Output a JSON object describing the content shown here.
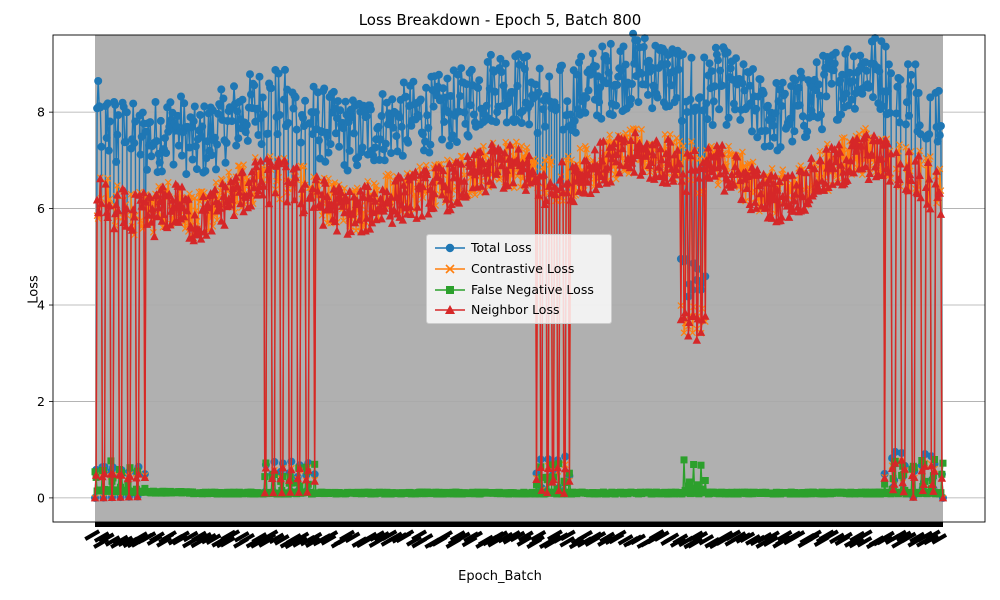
{
  "chart_data": {
    "type": "line",
    "title": "Loss Breakdown - Epoch 5, Batch 800",
    "xlabel": "Epoch_Batch",
    "ylabel": "Loss",
    "ylim": [
      -0.5,
      9.6
    ],
    "yticks": [
      0,
      2,
      4,
      6,
      8
    ],
    "grid": "y-axis horizontal lines",
    "legend_position": "center",
    "plot_background": "#b0b0b0",
    "num_points": 800,
    "x_tick_labels_note": "",
    "series": [
      {
        "name": "Total Loss",
        "color": "#1f77b4",
        "marker": "circle",
        "baseline": [
          7.9,
          7.6,
          7.4,
          7.5,
          7.7,
          7.3,
          7.6,
          7.9,
          8.1,
          8.2,
          8.0,
          7.8,
          7.6,
          7.5,
          7.7,
          7.8,
          7.9,
          8.0,
          8.1,
          8.4,
          8.6,
          8.5,
          8.3,
          8.2,
          8.4,
          8.6,
          8.8,
          8.9,
          8.8,
          8.6,
          8.4,
          8.6,
          8.3,
          8.0,
          7.9,
          8.1,
          8.4,
          8.7,
          8.9,
          8.8,
          8.5,
          8.3,
          8.0
        ]
      },
      {
        "name": "Contrastive Loss",
        "color": "#ff7f0e",
        "marker": "x",
        "baseline": [
          6.3,
          6.1,
          5.9,
          6.0,
          6.2,
          5.8,
          6.1,
          6.4,
          6.6,
          6.7,
          6.5,
          6.3,
          6.1,
          6.0,
          6.2,
          6.3,
          6.4,
          6.5,
          6.6,
          6.8,
          7.0,
          6.9,
          6.7,
          6.6,
          6.8,
          7.0,
          7.1,
          7.2,
          7.1,
          7.0,
          6.8,
          7.0,
          6.7,
          6.4,
          6.3,
          6.5,
          6.8,
          7.0,
          7.2,
          7.1,
          6.9,
          6.7,
          6.4
        ]
      },
      {
        "name": "False Negative Loss",
        "color": "#2ca02c",
        "marker": "square",
        "baseline": [
          0.15,
          0.15,
          0.12,
          0.12,
          0.12,
          0.1,
          0.1,
          0.1,
          0.1,
          0.1,
          0.1,
          0.1,
          0.1,
          0.1,
          0.1,
          0.1,
          0.1,
          0.1,
          0.1,
          0.1,
          0.1,
          0.1,
          0.1,
          0.1,
          0.1,
          0.1,
          0.1,
          0.1,
          0.1,
          0.1,
          0.1,
          0.1,
          0.1,
          0.1,
          0.1,
          0.1,
          0.1,
          0.1,
          0.1,
          0.1,
          0.1,
          0.1,
          0.1
        ]
      },
      {
        "name": "Neighbor Loss",
        "color": "#d62728",
        "marker": "triangle",
        "baseline": [
          6.2,
          6.0,
          5.8,
          5.9,
          6.1,
          5.7,
          6.0,
          6.3,
          6.5,
          6.6,
          6.4,
          6.2,
          6.0,
          5.9,
          6.1,
          6.2,
          6.3,
          6.4,
          6.5,
          6.7,
          6.9,
          6.8,
          6.6,
          6.5,
          6.7,
          6.9,
          7.0,
          7.1,
          7.0,
          6.9,
          6.7,
          6.9,
          6.6,
          6.3,
          6.2,
          6.4,
          6.7,
          6.9,
          7.1,
          7.0,
          6.8,
          6.6,
          6.3
        ]
      }
    ],
    "drop_regions": [
      {
        "x_start": 0.0,
        "x_end": 0.06,
        "depth": 0.0
      },
      {
        "x_start": 0.2,
        "x_end": 0.26,
        "depth": 0.0
      },
      {
        "x_start": 0.52,
        "x_end": 0.56,
        "depth": 0.0
      },
      {
        "x_start": 0.69,
        "x_end": 0.72,
        "depth": 0.5
      },
      {
        "x_start": 0.93,
        "x_end": 1.0,
        "depth": 0.0
      }
    ]
  },
  "legend": {
    "items": [
      {
        "label": "Total Loss"
      },
      {
        "label": "Contrastive Loss"
      },
      {
        "label": "False Negative Loss"
      },
      {
        "label": "Neighbor Loss"
      }
    ]
  }
}
